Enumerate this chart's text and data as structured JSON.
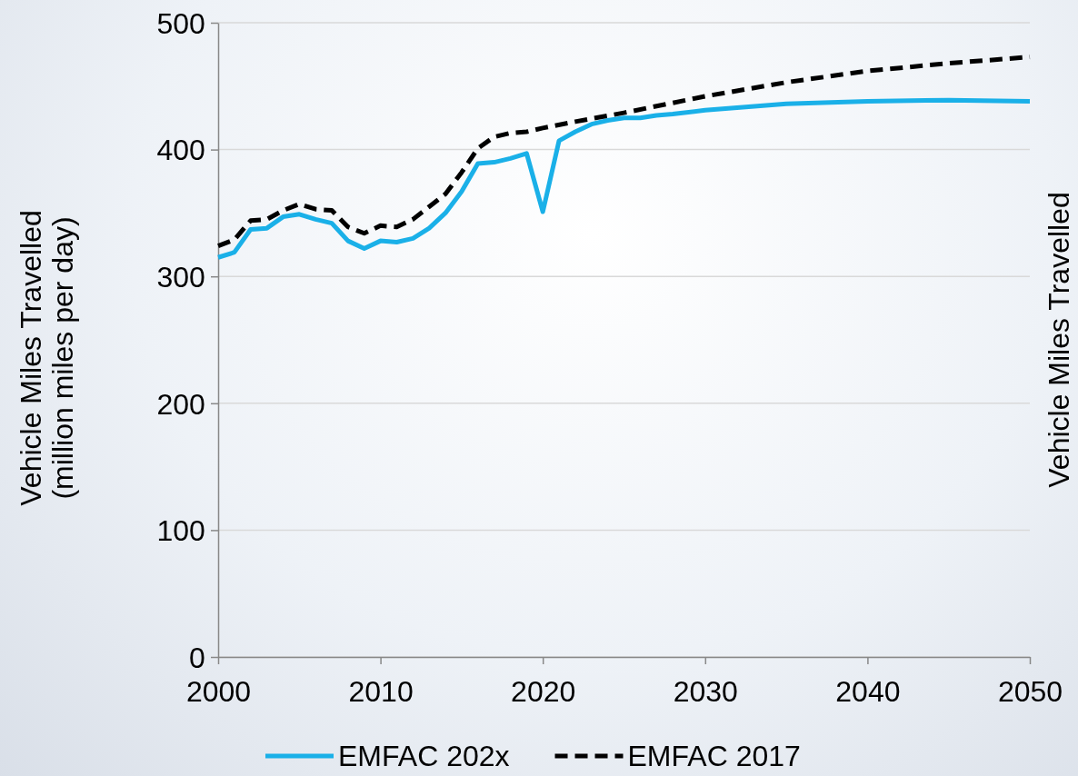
{
  "chart_data": {
    "type": "line",
    "ylabel": "Vehicle Miles Travelled\n(million miles per day)",
    "y2label": "Vehicle Miles Travelled",
    "xlim": [
      2000,
      2050
    ],
    "xticks": [
      2000,
      2010,
      2020,
      2030,
      2040,
      2050
    ],
    "ylim": [
      0,
      500
    ],
    "yticks": [
      0,
      100,
      200,
      300,
      400,
      500
    ],
    "grid": "y",
    "legend": "bottom",
    "marker": "none",
    "series": [
      {
        "name": "EMFAC 202x",
        "color": "#1ab0e8",
        "line_style": "solid",
        "x": [
          2000,
          2001,
          2002,
          2003,
          2004,
          2005,
          2006,
          2007,
          2008,
          2009,
          2010,
          2011,
          2012,
          2013,
          2014,
          2015,
          2016,
          2017,
          2018,
          2019,
          2020,
          2021,
          2022,
          2023,
          2024,
          2025,
          2026,
          2027,
          2028,
          2030,
          2035,
          2040,
          2045,
          2050
        ],
        "values": [
          315,
          319,
          337,
          338,
          347,
          349,
          345,
          342,
          328,
          322,
          328,
          327,
          330,
          338,
          350,
          367,
          389,
          390,
          393,
          397,
          351,
          407,
          414,
          420,
          423,
          425,
          425,
          427,
          428,
          431,
          436,
          438,
          439,
          438
        ]
      },
      {
        "name": "EMFAC 2017",
        "color": "#000000",
        "line_style": "dashed",
        "x": [
          2000,
          2001,
          2002,
          2003,
          2004,
          2005,
          2006,
          2007,
          2008,
          2009,
          2010,
          2011,
          2012,
          2013,
          2014,
          2015,
          2016,
          2017,
          2018,
          2019,
          2020,
          2022,
          2025,
          2030,
          2035,
          2040,
          2045,
          2050
        ],
        "values": [
          324,
          329,
          344,
          345,
          352,
          357,
          353,
          352,
          339,
          334,
          340,
          339,
          345,
          355,
          365,
          382,
          401,
          410,
          413,
          414,
          417,
          422,
          429,
          442,
          453,
          462,
          468,
          473
        ]
      }
    ]
  }
}
